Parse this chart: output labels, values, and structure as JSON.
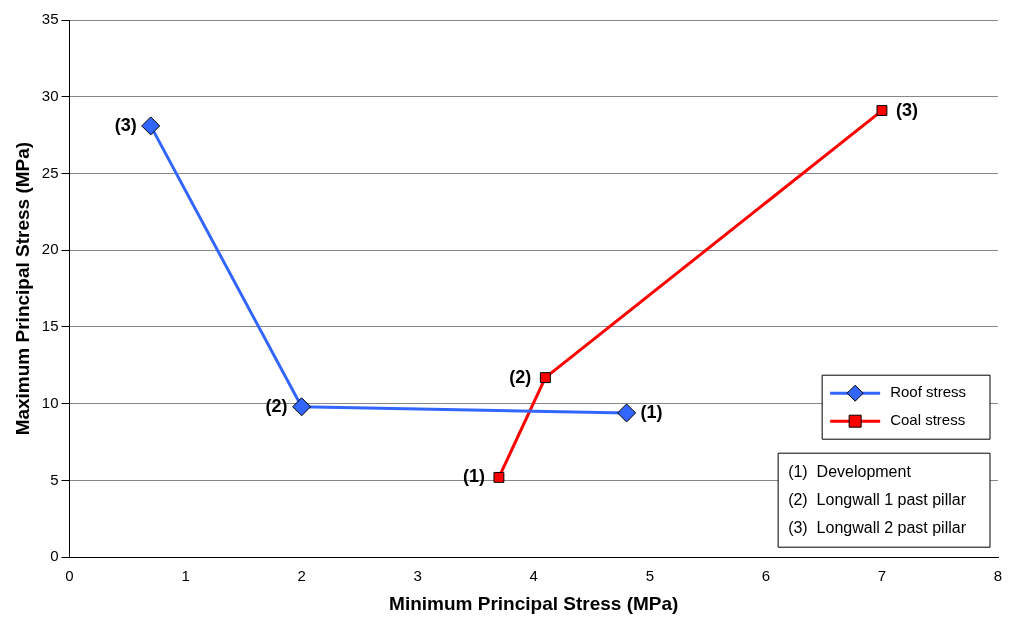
{
  "chart_data": {
    "type": "line",
    "xlabel": "Minimum Principal Stress (MPa)",
    "ylabel": "Maximum Principal Stress (MPa)",
    "xlim": [
      0,
      8
    ],
    "xticks": [
      0,
      1,
      2,
      3,
      4,
      5,
      6,
      7,
      8
    ],
    "ylim": [
      0,
      35
    ],
    "yticks": [
      0,
      5,
      10,
      15,
      20,
      25,
      30,
      35
    ],
    "grid": "y",
    "legend": "bottom right",
    "series": [
      {
        "name": "Roof stress",
        "color": "#3366ff",
        "marker": "diamond",
        "x": [
          0.7,
          2.0,
          4.8
        ],
        "values": [
          28.1,
          9.8,
          9.4
        ]
      },
      {
        "name": "Coal stress",
        "color": "#ff0000",
        "marker": "square",
        "x": [
          3.7,
          4.1,
          7.0
        ],
        "values": [
          5.2,
          11.7,
          29.1
        ]
      }
    ],
    "annotations": [
      {
        "text": "(3)",
        "x": 0.7,
        "y": 28.1
      },
      {
        "text": "(2)",
        "x": 2.0,
        "y": 9.8
      },
      {
        "text": "(1)",
        "x": 4.8,
        "y": 9.4
      },
      {
        "text": "(1)",
        "x": 3.7,
        "y": 5.2
      },
      {
        "text": "(2)",
        "x": 4.1,
        "y": 11.7
      },
      {
        "text": "(3)",
        "x": 7.0,
        "y": 29.1
      },
      "(1)  Development",
      "(2)  Longwall 1 past pillar",
      "(3)  Longwall 2 past pillar"
    ]
  }
}
